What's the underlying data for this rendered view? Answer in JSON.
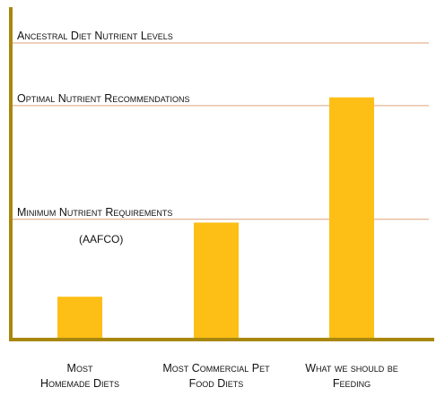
{
  "chart_data": {
    "type": "bar",
    "categories": [
      [
        "Most",
        "Homemade Diets"
      ],
      [
        "Most Commercial Pet",
        "Food Diets"
      ],
      [
        "What we should be",
        "Feeding"
      ]
    ],
    "values": [
      1.3,
      3.55,
      7.35
    ],
    "ylim": [
      0,
      9.5
    ],
    "reference_lines": [
      {
        "label": "Ancestral Diet Nutrient Levels",
        "value": 9.0
      },
      {
        "label": "Optimal Nutrient Recommendations",
        "value": 7.1
      },
      {
        "label": "Minimum Nutrient Requirements",
        "value": 3.65
      }
    ],
    "annotation": "(AAFCO)",
    "xlabel": "",
    "ylabel": "",
    "grid": false,
    "colors": {
      "bar": "#FDBF16",
      "axis": "#A9870F",
      "reference_line": "#E0A27A"
    }
  }
}
